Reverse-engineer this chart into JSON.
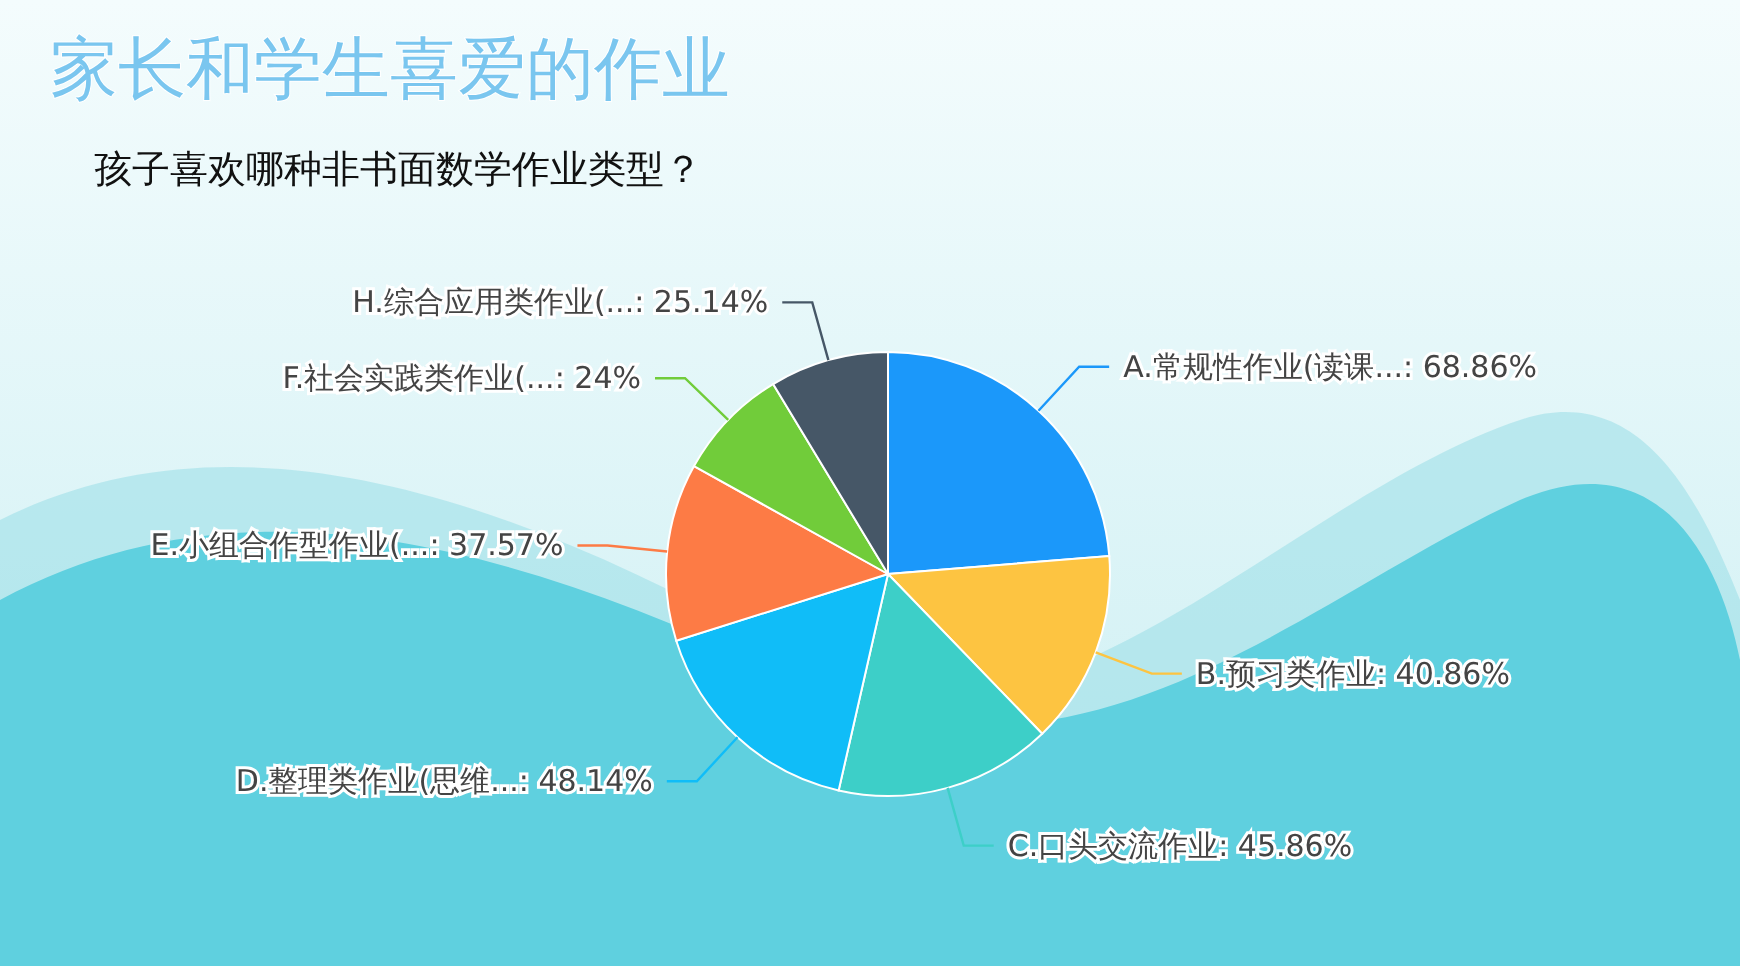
{
  "chart_data": {
    "type": "pie",
    "title": "家长和学生喜爱的作业",
    "subtitle": "孩子喜欢哪种非书面数学作业类型？",
    "categories": [
      "A.常规性作业(读课...",
      "B.预习类作业",
      "C.口头交流作业",
      "D.整理类作业(思维...",
      "E.小组合作型作业(...",
      "F.社会实践类作业(...",
      "H.综合应用类作业(..."
    ],
    "value_labels": [
      "68.86%",
      "40.86%",
      "45.86%",
      "48.14%",
      "37.57%",
      "24%",
      "25.14%"
    ],
    "values": [
      68.86,
      40.86,
      45.86,
      48.14,
      37.57,
      24,
      25.14
    ],
    "colors": [
      "#1b98fa",
      "#fdc441",
      "#3dcfc8",
      "#10bdf8",
      "#fd7b45",
      "#71cc3a",
      "#465767"
    ],
    "legend": false
  }
}
